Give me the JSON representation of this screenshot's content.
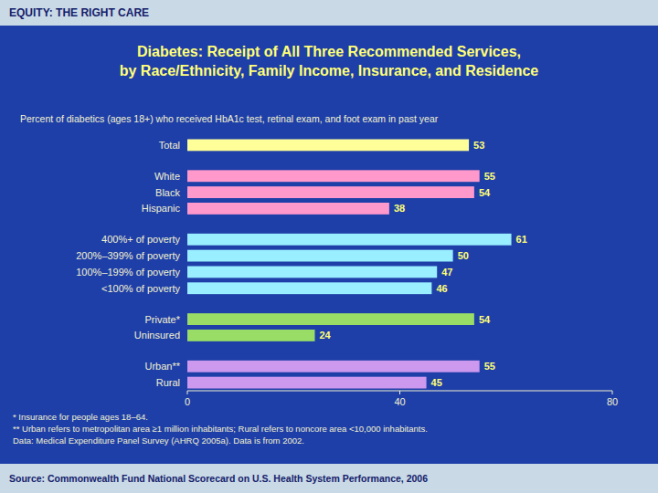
{
  "chart_data": {
    "type": "bar",
    "orientation": "horizontal",
    "header": "EQUITY: THE RIGHT CARE",
    "title": "Diabetes: Receipt of All Three Recommended Services,\nby Race/Ethnicity, Family Income, Insurance, and Residence",
    "subtitle": "Percent of diabetics (ages 18+) who received HbA1c test, retinal exam, and foot exam in past year",
    "categories": [
      "Total",
      "White",
      "Black",
      "Hispanic",
      "400%+ of poverty",
      "200%–399% of poverty",
      "100%–199% of poverty",
      "<100% of poverty",
      "Private*",
      "Uninsured",
      "Urban**",
      "Rural"
    ],
    "values": [
      53,
      55,
      54,
      38,
      61,
      50,
      47,
      46,
      54,
      24,
      55,
      45
    ],
    "colors": [
      "#FFFF99",
      "#FF99CC",
      "#FF99CC",
      "#FF99CC",
      "#99EEFF",
      "#99EEFF",
      "#99EEFF",
      "#99EEFF",
      "#99DD66",
      "#99DD66",
      "#CC99EE",
      "#CC99EE"
    ],
    "xlim": [
      0,
      80
    ],
    "xticks": [
      0,
      40,
      80
    ],
    "data_labels": true,
    "grid": false,
    "footnotes": [
      "* Insurance for people ages 18–64.",
      "** Urban refers to metropolitan area ≥1 million inhabitants; Rural refers to noncore area <10,000 inhabitants.",
      "Data: Medical Expenditure Panel Survey (AHRQ 2005a).  Data is from 2002."
    ],
    "source": "Source: Commonwealth Fund National Scorecard on U.S. Health System Performance, 2006"
  }
}
